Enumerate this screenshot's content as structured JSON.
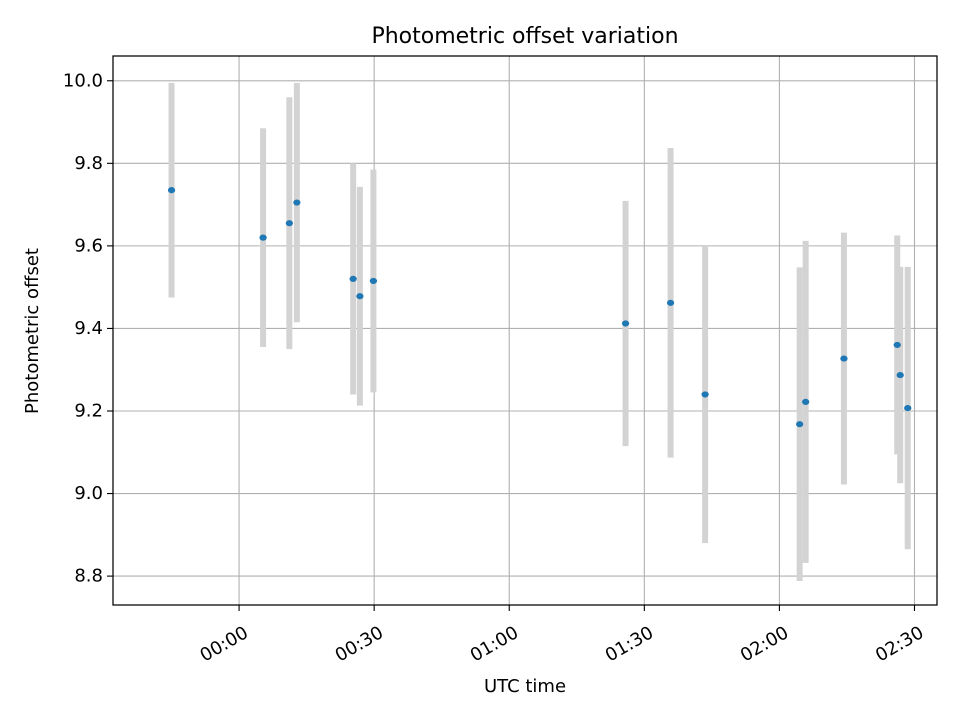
{
  "chart_data": {
    "type": "scatter",
    "title": "Photometric offset variation",
    "xlabel": "UTC time",
    "ylabel": "Photometric offset",
    "xlim": [
      "23:32:00",
      "02:35:00"
    ],
    "ylim": [
      8.73,
      10.06
    ],
    "grid": true,
    "x_ticks": [
      "00:00",
      "00:30",
      "01:00",
      "01:30",
      "02:00",
      "02:30"
    ],
    "y_ticks": [
      "8.8",
      "9.0",
      "9.2",
      "9.4",
      "9.6",
      "9.8",
      "10.0"
    ],
    "colors": {
      "points": "#1f77b4",
      "error_bars": "#d3d3d3",
      "grid": "#b0b0b0"
    },
    "points": [
      {
        "x": "23:45:00",
        "y": 9.735,
        "err": 0.26
      },
      {
        "x": "00:05:20",
        "y": 9.62,
        "err": 0.265
      },
      {
        "x": "00:11:10",
        "y": 9.655,
        "err": 0.305
      },
      {
        "x": "00:12:50",
        "y": 9.705,
        "err": 0.29
      },
      {
        "x": "00:25:20",
        "y": 9.52,
        "err": 0.28
      },
      {
        "x": "00:26:50",
        "y": 9.478,
        "err": 0.265
      },
      {
        "x": "00:29:50",
        "y": 9.515,
        "err": 0.27
      },
      {
        "x": "01:25:50",
        "y": 9.412,
        "err": 0.297
      },
      {
        "x": "01:35:50",
        "y": 9.462,
        "err": 0.375
      },
      {
        "x": "01:43:30",
        "y": 9.24,
        "err": 0.36
      },
      {
        "x": "02:04:30",
        "y": 9.168,
        "err": 0.38
      },
      {
        "x": "02:05:50",
        "y": 9.222,
        "err": 0.39
      },
      {
        "x": "02:14:20",
        "y": 9.327,
        "err": 0.305
      },
      {
        "x": "02:26:10",
        "y": 9.36,
        "err": 0.265
      },
      {
        "x": "02:26:50",
        "y": 9.287,
        "err": 0.262
      },
      {
        "x": "02:28:30",
        "y": 9.207,
        "err": 0.342
      }
    ]
  }
}
